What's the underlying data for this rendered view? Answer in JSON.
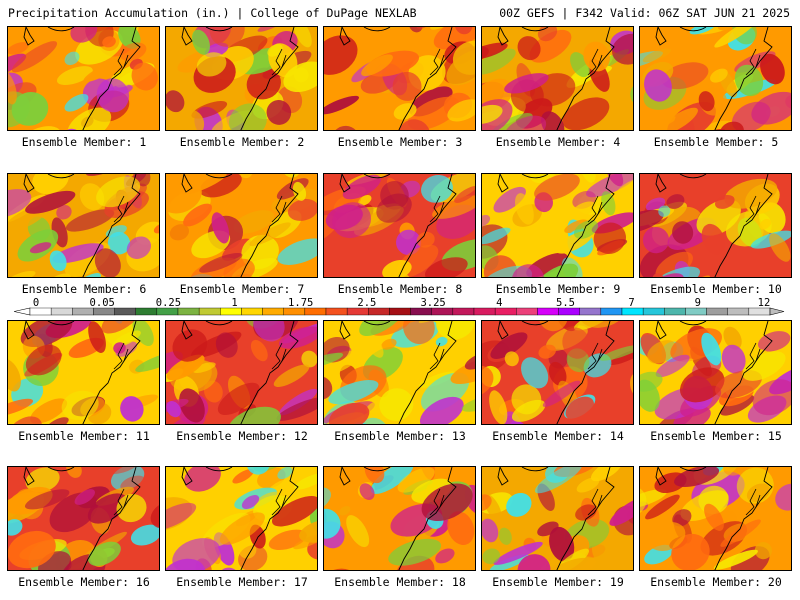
{
  "header": {
    "left": "Precipitation Accumulation (in.) | College of DuPage NEXLAB",
    "right": "00Z GEFS | F342 Valid: 06Z SAT JUN 21 2025"
  },
  "members": [
    "Ensemble Member: 1",
    "Ensemble Member: 2",
    "Ensemble Member: 3",
    "Ensemble Member: 4",
    "Ensemble Member: 5",
    "Ensemble Member: 6",
    "Ensemble Member: 7",
    "Ensemble Member: 8",
    "Ensemble Member: 9",
    "Ensemble Member: 10",
    "Ensemble Member: 11",
    "Ensemble Member: 12",
    "Ensemble Member: 13",
    "Ensemble Member: 14",
    "Ensemble Member: 15",
    "Ensemble Member: 16",
    "Ensemble Member: 17",
    "Ensemble Member: 18",
    "Ensemble Member: 19",
    "Ensemble Member: 20"
  ],
  "colorbar": {
    "labels": [
      "0",
      "0.05",
      "0.25",
      "1",
      "1.75",
      "2.5",
      "3.25",
      "4",
      "5.5",
      "7",
      "9",
      "12"
    ],
    "colors": [
      "#ffffff",
      "#d8d8d8",
      "#b0b0b0",
      "#888888",
      "#5a5a5a",
      "#2e7d32",
      "#43a047",
      "#7cb342",
      "#c0ca33",
      "#ffff00",
      "#ffd600",
      "#ffab00",
      "#ff8f00",
      "#ff6d00",
      "#f4511e",
      "#e53935",
      "#c62828",
      "#a50f15",
      "#880e4f",
      "#ad1457",
      "#c2185b",
      "#d81b60",
      "#e91e63",
      "#ec407a",
      "#d500f9",
      "#aa00ff",
      "#9575cd",
      "#2196f3",
      "#00e5ff",
      "#26c6da",
      "#4db6ac",
      "#80cbc4",
      "#9e9e9e",
      "#bdbdbd",
      "#e0e0e0"
    ]
  }
}
